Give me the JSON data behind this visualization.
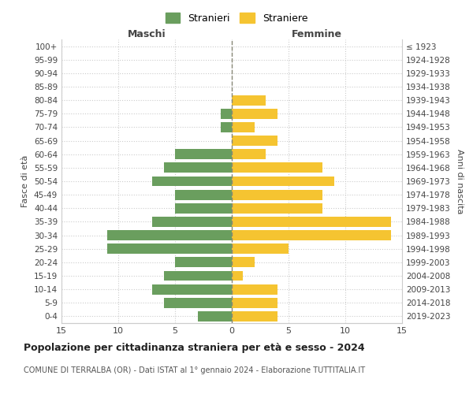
{
  "age_groups": [
    "100+",
    "95-99",
    "90-94",
    "85-89",
    "80-84",
    "75-79",
    "70-74",
    "65-69",
    "60-64",
    "55-59",
    "50-54",
    "45-49",
    "40-44",
    "35-39",
    "30-34",
    "25-29",
    "20-24",
    "15-19",
    "10-14",
    "5-9",
    "0-4"
  ],
  "birth_years": [
    "≤ 1923",
    "1924-1928",
    "1929-1933",
    "1934-1938",
    "1939-1943",
    "1944-1948",
    "1949-1953",
    "1954-1958",
    "1959-1963",
    "1964-1968",
    "1969-1973",
    "1974-1978",
    "1979-1983",
    "1984-1988",
    "1989-1993",
    "1994-1998",
    "1999-2003",
    "2004-2008",
    "2009-2013",
    "2014-2018",
    "2019-2023"
  ],
  "males": [
    0,
    0,
    0,
    0,
    0,
    1,
    1,
    0,
    5,
    6,
    7,
    5,
    5,
    7,
    11,
    11,
    5,
    6,
    7,
    6,
    3
  ],
  "females": [
    0,
    0,
    0,
    0,
    3,
    4,
    2,
    4,
    3,
    8,
    9,
    8,
    8,
    14,
    14,
    5,
    2,
    1,
    4,
    4,
    4
  ],
  "male_color": "#6a9e5e",
  "female_color": "#f5c431",
  "background_color": "#ffffff",
  "grid_color": "#cccccc",
  "center_line_color": "#888877",
  "xlim": 15,
  "title": "Popolazione per cittadinanza straniera per età e sesso - 2024",
  "subtitle": "COMUNE DI TERRALBA (OR) - Dati ISTAT al 1° gennaio 2024 - Elaborazione TUTTITALIA.IT",
  "xlabel_left": "Maschi",
  "xlabel_right": "Femmine",
  "ylabel_left": "Fasce di età",
  "ylabel_right": "Anni di nascita",
  "legend_male": "Stranieri",
  "legend_female": "Straniere",
  "bar_height": 0.75
}
